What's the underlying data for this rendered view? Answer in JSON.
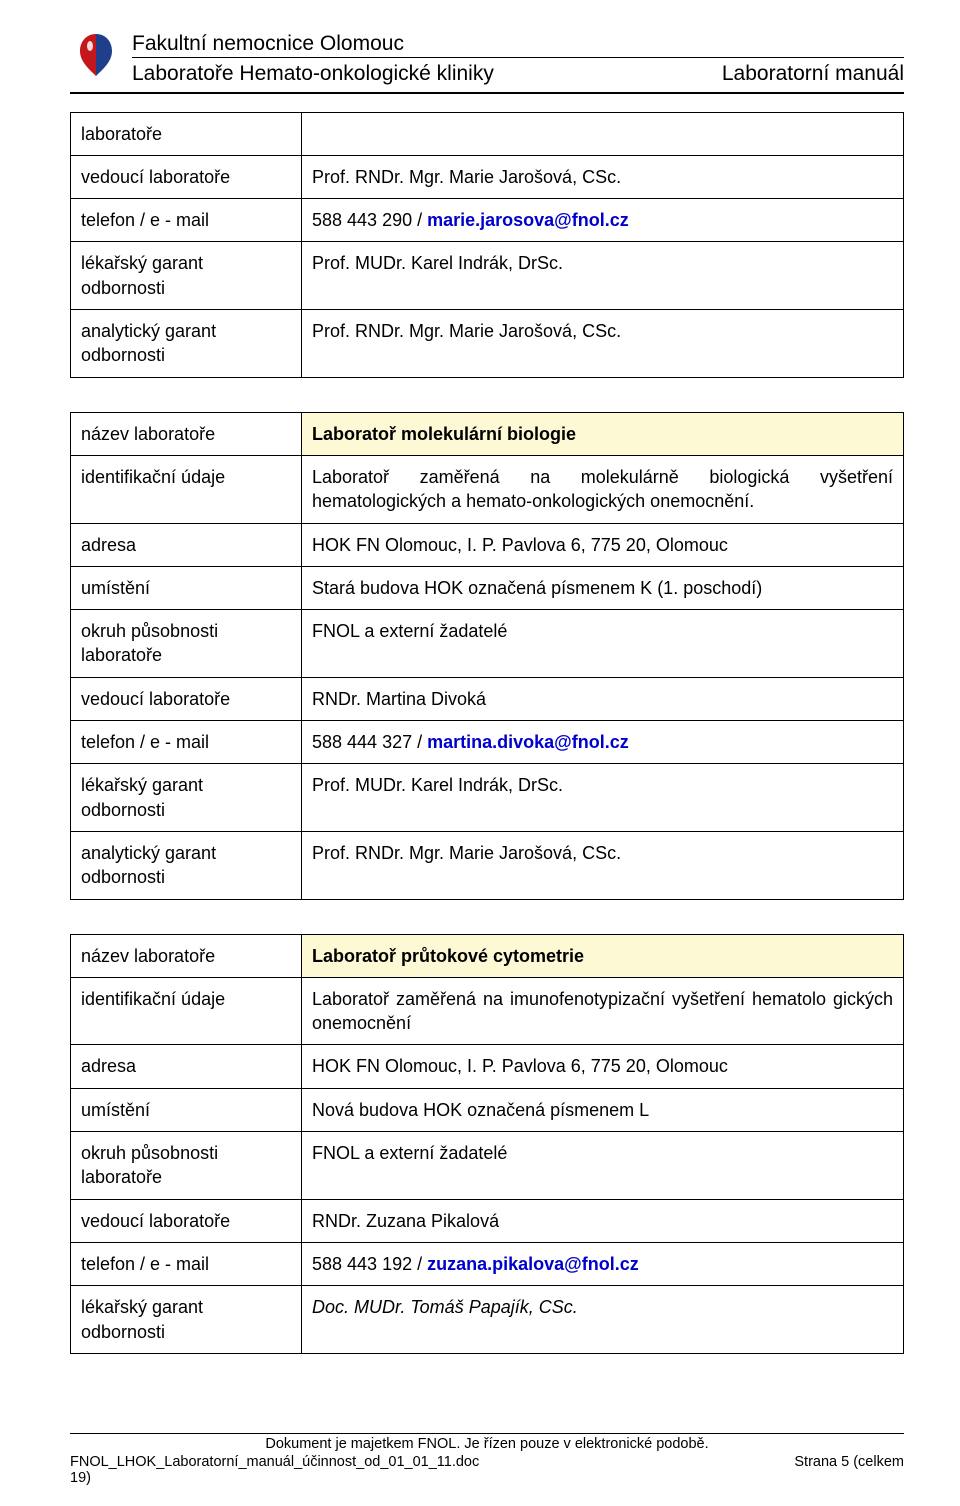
{
  "header": {
    "org": "Fakultní nemocnice Olomouc",
    "dept": "Laboratoře Hemato-onkologické kliniky",
    "doc": "Laboratorní manuál"
  },
  "logo": {
    "red": "#c4171c",
    "blue": "#1f3e8b"
  },
  "colors": {
    "title_bg": "#fcf9d4",
    "link": "#0000cc"
  },
  "table1": {
    "rows": [
      {
        "label": "laboratoře"
      },
      {
        "label": "vedoucí laboratoře",
        "value": "Prof. RNDr. Mgr. Marie Jarošová, CSc."
      },
      {
        "label": "telefon / e - mail",
        "phone": "588 443 290 / ",
        "email": "marie.jarosova@fnol.cz"
      },
      {
        "label": "lékařský garant odbornosti",
        "value": "Prof. MUDr. Karel Indrák, DrSc."
      },
      {
        "label": "analytický garant odbornosti",
        "value": "Prof. RNDr. Mgr. Marie Jarošová, CSc."
      }
    ]
  },
  "table2": {
    "title_label": "název laboratoře",
    "title_value": "Laboratoř molekulární biologie",
    "rows": [
      {
        "label": "identifikační údaje",
        "value": "Laboratoř zaměřená na molekulárně biologická vyšetření hematologických a hemato-onkologických onemocnění.",
        "justify": true
      },
      {
        "label": "adresa",
        "value": "HOK FN Olomouc, I. P. Pavlova 6, 775 20, Olomouc"
      },
      {
        "label": "umístění",
        "value": "Stará budova HOK označená písmenem K (1. poschodí)"
      },
      {
        "label": "okruh působnosti laboratoře",
        "value": "FNOL a externí žadatelé"
      },
      {
        "label": "vedoucí laboratoře",
        "value": "RNDr. Martina Divoká"
      },
      {
        "label": "telefon / e - mail",
        "phone": "588 444 327 / ",
        "email": "martina.divoka@fnol.cz"
      },
      {
        "label": "lékařský garant odbornosti",
        "value": "Prof. MUDr. Karel Indrák, DrSc."
      },
      {
        "label": "analytický garant odbornosti",
        "value": "Prof. RNDr. Mgr. Marie Jarošová, CSc."
      }
    ]
  },
  "table3": {
    "title_label": "název laboratoře",
    "title_value": "Laboratoř průtokové cytometrie",
    "rows": [
      {
        "label": "identifikační údaje",
        "value": "Laboratoř zaměřená na imunofenotypizační vyšetření hematolo gických onemocnění",
        "justify": true
      },
      {
        "label": "adresa",
        "value": "HOK FN Olomouc, I. P. Pavlova 6, 775 20, Olomouc"
      },
      {
        "label": "umístění",
        "value": "Nová budova HOK označená písmenem L"
      },
      {
        "label": "okruh působnosti laboratoře",
        "value": "FNOL a externí žadatelé"
      },
      {
        "label": "vedoucí laboratoře",
        "value": "RNDr. Zuzana Pikalová"
      },
      {
        "label": "telefon / e - mail",
        "phone": "588 443 192 / ",
        "email": "zuzana.pikalova@fnol.cz"
      },
      {
        "label": "lékařský garant odbornosti",
        "value": "Doc. MUDr. Tomáš Papajík, CSc.",
        "italic": true
      }
    ]
  },
  "footer": {
    "line1": "Dokument je majetkem FNOL. Je řízen pouze v elektronické podobě.",
    "file": "FNOL_LHOK_Laboratorní_manuál_účinnost_od_01_01_11.doc",
    "page": "Strana  5  (celkem",
    "page2": "19)"
  }
}
